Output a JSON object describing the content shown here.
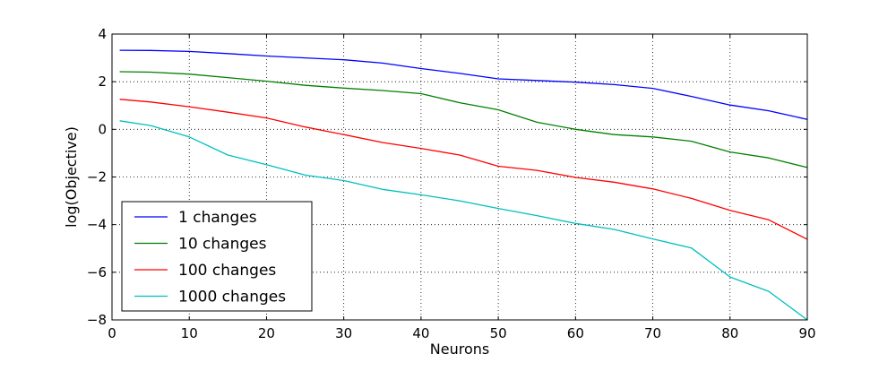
{
  "chart_data": {
    "type": "line",
    "title": "",
    "xlabel": "Neurons",
    "ylabel": "log(Objective)",
    "xlim": [
      0,
      90
    ],
    "ylim": [
      -8,
      4
    ],
    "xticks": [
      0,
      10,
      20,
      30,
      40,
      50,
      60,
      70,
      80,
      90
    ],
    "yticks": [
      -8,
      -6,
      -4,
      -2,
      0,
      2,
      4
    ],
    "grid": true,
    "grid_style": "dotted",
    "legend_position": "lower-left",
    "x": [
      1,
      5,
      10,
      15,
      20,
      25,
      30,
      35,
      40,
      45,
      50,
      55,
      60,
      65,
      70,
      75,
      80,
      85,
      90
    ],
    "series": [
      {
        "name": "1 changes",
        "color": "#0000ff",
        "values": [
          3.32,
          3.31,
          3.27,
          3.18,
          3.08,
          3.0,
          2.92,
          2.78,
          2.55,
          2.35,
          2.12,
          2.05,
          1.98,
          1.88,
          1.72,
          1.38,
          1.02,
          0.78,
          0.42
        ]
      },
      {
        "name": "10 changes",
        "color": "#008000",
        "values": [
          2.42,
          2.4,
          2.32,
          2.17,
          2.02,
          1.85,
          1.73,
          1.63,
          1.5,
          1.12,
          0.82,
          0.3,
          0.0,
          -0.22,
          -0.32,
          -0.5,
          -0.95,
          -1.2,
          -1.6
        ]
      },
      {
        "name": "100 changes",
        "color": "#ff0000",
        "values": [
          1.26,
          1.15,
          0.95,
          0.72,
          0.48,
          0.1,
          -0.22,
          -0.55,
          -0.8,
          -1.08,
          -1.55,
          -1.72,
          -2.02,
          -2.22,
          -2.5,
          -2.9,
          -3.4,
          -3.8,
          -4.62
        ]
      },
      {
        "name": "1000 changes",
        "color": "#00bfbf",
        "values": [
          0.36,
          0.16,
          -0.32,
          -1.08,
          -1.48,
          -1.92,
          -2.15,
          -2.52,
          -2.75,
          -3.0,
          -3.32,
          -3.62,
          -3.95,
          -4.2,
          -4.6,
          -4.98,
          -6.2,
          -6.8,
          -8.0
        ]
      }
    ]
  }
}
